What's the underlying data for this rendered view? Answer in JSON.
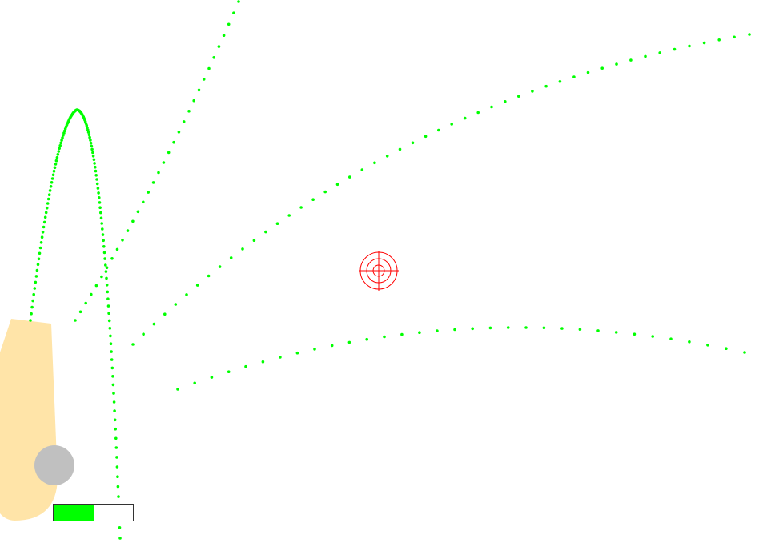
{
  "scene": {
    "background": "#ffffff",
    "launcher_color": "#ffe4a8",
    "ball_color": "#c0c0c0",
    "trail_color": "#00ff00",
    "target_color": "#ff0000",
    "target_icon": "crosshair-target-icon"
  },
  "power_meter": {
    "level": 0.5,
    "fill_color": "#00ff00",
    "border_color": "#333333"
  }
}
